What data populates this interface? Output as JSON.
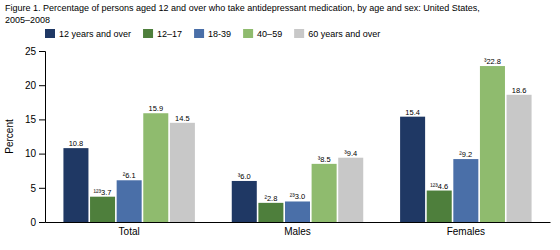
{
  "chart_data": {
    "type": "bar",
    "title": [
      "Figure 1. Percentage of persons aged 12 and over who take antidepressant medication, by age and sex: United States,",
      "2005–2008"
    ],
    "y_label": "Percent",
    "categories": [
      "Total",
      "Males",
      "Females"
    ],
    "series": [
      {
        "name": "12 years and over",
        "color": "#1f3864",
        "values": [
          10.8,
          6.0,
          15.4
        ],
        "value_labels": [
          "10.8",
          "³6.0",
          "15.4"
        ]
      },
      {
        "name": "12–17",
        "color": "#4e7f3c",
        "values": [
          3.7,
          2.8,
          4.6
        ],
        "value_labels": [
          "¹²³3.7",
          "²2.8",
          "¹²³4.6"
        ]
      },
      {
        "name": "18-39",
        "color": "#4a6fa8",
        "values": [
          6.1,
          3.0,
          9.2
        ],
        "value_labels": [
          "²6.1",
          "²³3.0",
          "²9.2"
        ]
      },
      {
        "name": "40–59",
        "color": "#8fbb6e",
        "values": [
          15.9,
          8.5,
          22.8
        ],
        "value_labels": [
          "15.9",
          "³8.5",
          "³22.8"
        ]
      },
      {
        "name": "60 years and over",
        "color": "#c8c8c8",
        "values": [
          14.5,
          9.4,
          18.6
        ],
        "value_labels": [
          "14.5",
          "³9.4",
          "18.6"
        ]
      }
    ],
    "ylim": [
      0,
      25
    ],
    "yticks": [
      0,
      5,
      10,
      15,
      20,
      25
    ],
    "grid": false,
    "legend": "top",
    "data_labels": true
  }
}
